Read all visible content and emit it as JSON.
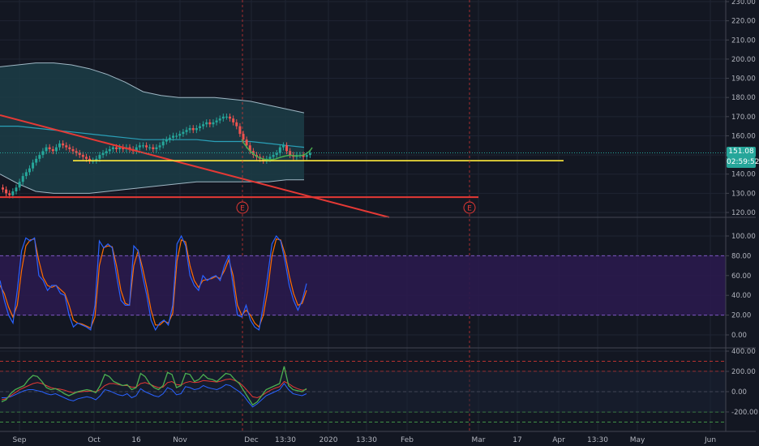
{
  "colors": {
    "background": "#131722",
    "grid": "#1f2433",
    "pane_separator": "#434651",
    "axis_text": "#b2b5be",
    "bollinger_fill": "#1c3d46",
    "bollinger_band": "#9fb7c4",
    "bollinger_basis": "#2aa0b8",
    "candle_up": "#26a69a",
    "candle_down": "#ef5350",
    "support_line": "#ffeb3b",
    "trend_line": "#e53935",
    "horizontal_line": "#e53935",
    "circle_annotation": "#4caf50",
    "stoch_band": "#2a1a4d",
    "stoch_k": "#2962ff",
    "stoch_d": "#ff6d00",
    "cci_line": "#4caf50",
    "cci_avg": "#e53935",
    "cci_dark": "#2962ff",
    "last_price": "#26a69a",
    "event_marker": "#e53935"
  },
  "price_axis": {
    "labels": [
      "230.00",
      "220.00",
      "210.00",
      "200.00",
      "190.00",
      "180.00",
      "170.00",
      "160.00",
      "150.00",
      "140.00",
      "130.00",
      "120.00"
    ]
  },
  "last_price_label": "151.08",
  "countdown_label": "02:59:52",
  "stochastic_axis": {
    "labels": [
      "100.00",
      "80.00",
      "60.00",
      "40.00",
      "20.00",
      "0.00"
    ]
  },
  "cci_axis": {
    "labels": [
      "400.00",
      "200.00",
      "0.00",
      "-200.00"
    ]
  },
  "time_axis": {
    "labels": [
      "Sep",
      "Oct",
      "16",
      "Nov",
      "Dec",
      "13:30",
      "2020",
      "13:30",
      "Feb",
      "Mar",
      "17",
      "Apr",
      "13:30",
      "May",
      "Jun"
    ]
  },
  "event_markers": [
    {
      "label": "E"
    },
    {
      "label": "E"
    }
  ],
  "chart_data": [
    {
      "type": "candlestick",
      "pane": "price",
      "ylim": [
        117,
        233
      ],
      "price_close_approx": [
        132,
        130,
        129,
        131,
        133,
        136,
        139,
        141,
        143,
        146,
        148,
        150,
        152,
        154,
        153,
        152,
        154,
        156,
        155,
        154,
        153,
        152,
        151,
        150,
        149,
        148,
        147,
        147,
        148,
        150,
        151,
        152,
        153,
        154,
        153,
        154,
        153,
        154,
        153,
        152,
        154,
        155,
        155,
        154,
        154,
        153,
        154,
        155,
        157,
        158,
        159,
        160,
        160,
        161,
        162,
        163,
        164,
        163,
        164,
        165,
        166,
        167,
        166,
        167,
        168,
        169,
        170,
        170,
        169,
        167,
        165,
        161,
        158,
        155,
        152,
        150,
        149,
        148,
        147,
        148,
        149,
        150,
        151,
        154,
        155,
        152,
        150,
        149,
        150,
        150,
        149,
        150,
        151
      ],
      "bollinger_upper": [
        196,
        197,
        198,
        198,
        197,
        195,
        192,
        188,
        183,
        181,
        180,
        180,
        180,
        179,
        178,
        176,
        174,
        172
      ],
      "bollinger_basis": [
        165,
        165,
        164,
        163,
        162,
        161,
        160,
        159,
        158,
        158,
        158,
        158,
        157,
        157,
        157,
        156,
        155,
        154
      ],
      "bollinger_lower": [
        140,
        135,
        131,
        130,
        130,
        130,
        131,
        132,
        133,
        134,
        135,
        136,
        136,
        136,
        136,
        136,
        137,
        137
      ],
      "support_level": 147,
      "horizontal_level": 128,
      "last_price": 151.08
    },
    {
      "type": "line",
      "pane": "stochastic",
      "ylim": [
        -8,
        108
      ],
      "band": [
        20,
        80
      ],
      "series": [
        {
          "values": [
            55,
            35,
            20,
            12,
            45,
            85,
            98,
            95,
            98,
            60,
            55,
            45,
            50,
            50,
            42,
            40,
            20,
            8,
            12,
            10,
            8,
            5,
            30,
            95,
            88,
            92,
            88,
            60,
            35,
            30,
            30,
            90,
            85,
            60,
            40,
            15,
            5,
            12,
            15,
            10,
            30,
            92,
            100,
            90,
            60,
            50,
            45,
            60,
            55,
            58,
            60,
            55,
            70,
            80,
            50,
            20,
            18,
            30,
            15,
            8,
            5,
            30,
            60,
            92,
            100,
            95,
            75,
            50,
            35,
            25,
            35,
            52
          ]
        },
        {
          "values": [
            50,
            42,
            28,
            18,
            30,
            65,
            90,
            96,
            97,
            75,
            58,
            50,
            48,
            50,
            46,
            42,
            30,
            15,
            12,
            11,
            9,
            7,
            18,
            70,
            88,
            90,
            89,
            70,
            45,
            32,
            30,
            70,
            85,
            68,
            48,
            25,
            10,
            10,
            14,
            12,
            22,
            75,
            96,
            94,
            70,
            55,
            48,
            55,
            56,
            57,
            59,
            57,
            65,
            76,
            60,
            30,
            20,
            25,
            20,
            12,
            8,
            20,
            45,
            80,
            97,
            96,
            82,
            60,
            42,
            30,
            32,
            45
          ]
        }
      ]
    },
    {
      "type": "line",
      "pane": "cci",
      "ylim": [
        -330,
        440
      ],
      "guides": [
        300,
        200,
        0,
        -200,
        -300
      ],
      "series": [
        {
          "values": [
            -100,
            -80,
            -20,
            20,
            40,
            60,
            120,
            160,
            150,
            100,
            40,
            20,
            30,
            10,
            -20,
            -40,
            -20,
            0,
            10,
            20,
            10,
            -10,
            60,
            170,
            150,
            100,
            80,
            60,
            70,
            20,
            40,
            180,
            150,
            80,
            40,
            20,
            60,
            190,
            170,
            40,
            60,
            180,
            170,
            100,
            120,
            170,
            130,
            120,
            100,
            140,
            180,
            170,
            120,
            80,
            10,
            -60,
            -130,
            -100,
            -40,
            20,
            40,
            60,
            80,
            250,
            60,
            20,
            10,
            0,
            30
          ]
        },
        {
          "values": [
            -80,
            -70,
            -40,
            -10,
            20,
            40,
            60,
            80,
            90,
            80,
            60,
            40,
            30,
            25,
            15,
            0,
            -10,
            -5,
            0,
            5,
            5,
            0,
            20,
            60,
            80,
            80,
            70,
            60,
            60,
            45,
            45,
            80,
            90,
            75,
            55,
            40,
            45,
            90,
            100,
            70,
            65,
            90,
            100,
            90,
            95,
            110,
            105,
            100,
            95,
            105,
            120,
            125,
            110,
            90,
            50,
            0,
            -50,
            -60,
            -40,
            -10,
            15,
            35,
            50,
            100,
            80,
            50,
            30,
            15,
            20
          ]
        },
        {
          "values": [
            -60,
            -60,
            -50,
            -30,
            -10,
            10,
            20,
            20,
            10,
            0,
            -20,
            -30,
            -20,
            -40,
            -60,
            -80,
            -90,
            -70,
            -60,
            -50,
            -60,
            -80,
            -40,
            20,
            10,
            -10,
            -30,
            -40,
            -20,
            -60,
            -40,
            30,
            0,
            -20,
            -40,
            -50,
            -20,
            40,
            20,
            -30,
            -20,
            50,
            40,
            20,
            30,
            60,
            40,
            30,
            20,
            40,
            70,
            60,
            30,
            0,
            -40,
            -100,
            -150,
            -120,
            -80,
            -40,
            -20,
            0,
            20,
            80,
            20,
            -20,
            -30,
            -40,
            -20
          ]
        }
      ]
    }
  ]
}
